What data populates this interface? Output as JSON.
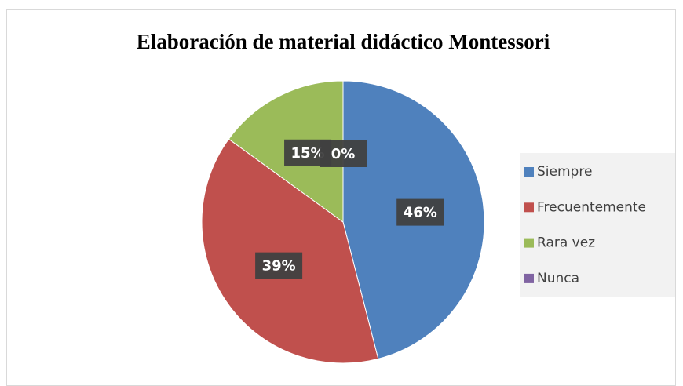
{
  "chart_data": {
    "type": "pie",
    "title": "Elaboración de material didáctico Montessori",
    "categories": [
      "Siempre",
      "Frecuentemente",
      "Rara vez",
      "Nunca"
    ],
    "values": [
      46,
      39,
      15,
      0
    ],
    "value_labels": [
      "46%",
      "39%",
      "15%",
      "0%"
    ],
    "colors": [
      "#4f81bd",
      "#c0504d",
      "#9bbb59",
      "#8064a2"
    ],
    "legend": "right"
  }
}
